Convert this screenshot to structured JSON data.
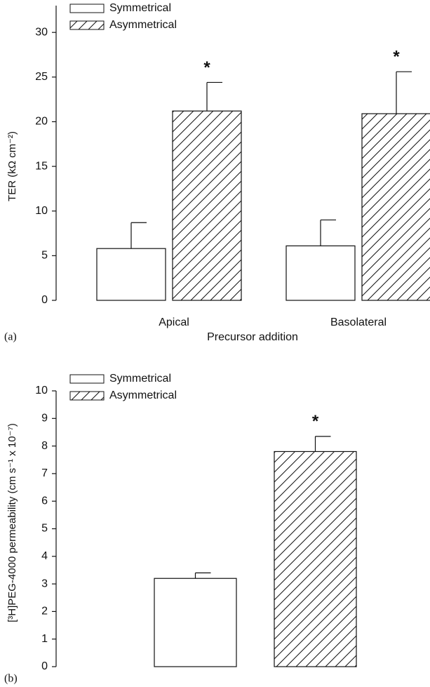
{
  "chart_data": [
    {
      "type": "bar",
      "panel_label": "(a)",
      "ylabel": "TER (kΩ cm⁻²)",
      "xlabel": "Precursor addition",
      "categories": [
        "Apical",
        "Basolateral"
      ],
      "series": [
        {
          "name": "Symmetrical",
          "color": "#ffffff",
          "hatch": false,
          "values": [
            5.8,
            6.1
          ],
          "errors": [
            2.9,
            2.9
          ]
        },
        {
          "name": "Asymmetrical",
          "color": "#ffffff",
          "hatch": true,
          "values": [
            21.2,
            20.9
          ],
          "errors": [
            3.2,
            4.7
          ]
        }
      ],
      "annotations": [
        "*",
        "*"
      ],
      "ylim": [
        0,
        33
      ],
      "yticks": [
        0,
        5,
        10,
        15,
        20,
        25,
        30
      ]
    },
    {
      "type": "bar",
      "panel_label": "(b)",
      "ylabel": "[³H]PEG-4000 permeability (cm s⁻¹ x 10⁻⁷)",
      "categories": [
        null
      ],
      "series": [
        {
          "name": "Symmetrical",
          "color": "#ffffff",
          "hatch": false,
          "values": [
            3.2
          ],
          "errors": [
            0.2
          ]
        },
        {
          "name": "Asymmetrical",
          "color": "#ffffff",
          "hatch": true,
          "values": [
            7.8
          ],
          "errors": [
            0.55
          ]
        }
      ],
      "annotations": [
        "*"
      ],
      "ylim": [
        0,
        10
      ],
      "yticks": [
        0,
        1,
        2,
        3,
        4,
        5,
        6,
        7,
        8,
        9,
        10
      ]
    }
  ]
}
